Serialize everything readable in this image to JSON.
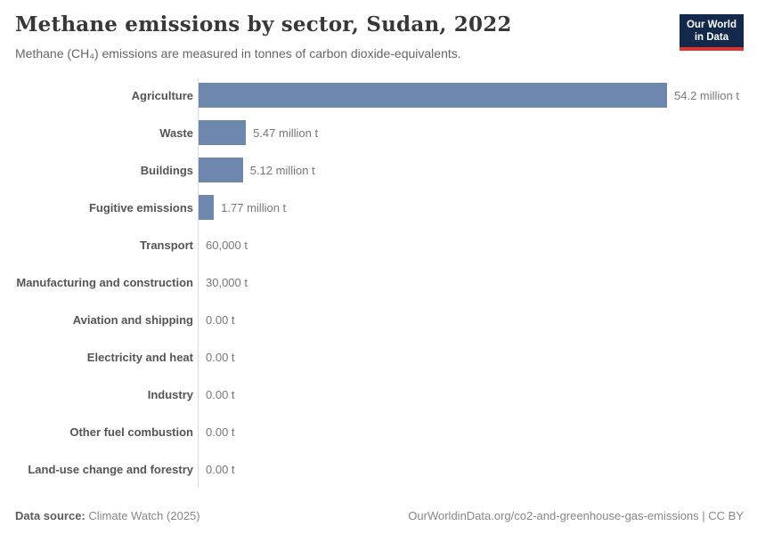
{
  "header": {
    "title": "Methane emissions by sector, Sudan, 2022",
    "subtitle": "Methane (CH₄) emissions are measured in tonnes of carbon dioxide-equivalents.",
    "logo": {
      "line1": "Our World",
      "line2": "in Data"
    }
  },
  "chart_data": {
    "type": "bar",
    "orientation": "horizontal",
    "title": "Methane emissions by sector, Sudan, 2022",
    "categories": [
      "Agriculture",
      "Waste",
      "Buildings",
      "Fugitive emissions",
      "Transport",
      "Manufacturing and construction",
      "Aviation and shipping",
      "Electricity and heat",
      "Industry",
      "Other fuel combustion",
      "Land-use change and forestry"
    ],
    "values_million_t": [
      54.2,
      5.47,
      5.12,
      1.77,
      0.06,
      0.03,
      0,
      0,
      0,
      0,
      0
    ],
    "value_labels": [
      "54.2 million t",
      "5.47 million t",
      "5.12 million t",
      "1.77 million t",
      "60,000 t",
      "30,000 t",
      "0.00 t",
      "0.00 t",
      "0.00 t",
      "0.00 t",
      "0.00 t"
    ],
    "xlim": [
      0,
      54.2
    ],
    "bar_color": "#6e87ae",
    "grid": false,
    "legend": "none"
  },
  "footer": {
    "source_label": "Data source:",
    "source_value": "Climate Watch (2025)",
    "link": "OurWorldinData.org/co2-and-greenhouse-gas-emissions | CC BY"
  }
}
